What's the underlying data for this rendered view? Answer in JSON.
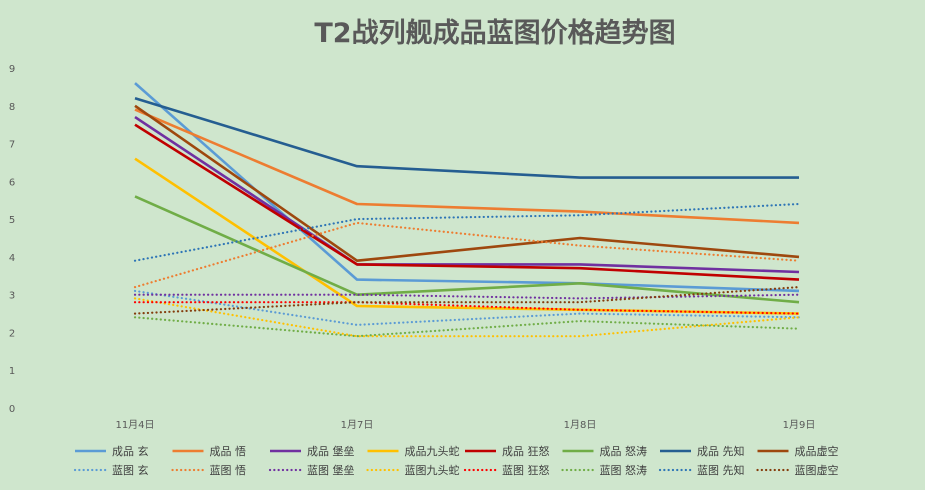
{
  "chart_data": {
    "type": "line",
    "title": "T2战列舰成品蓝图价格趋势图",
    "categories": [
      "11月4日",
      "1月7日",
      "1月8日",
      "1月9日"
    ],
    "ylim": [
      0,
      9
    ],
    "yticks": [
      0,
      1,
      2,
      3,
      4,
      5,
      6,
      7,
      8,
      9
    ],
    "grid": false,
    "legend_position": "bottom",
    "series": [
      {
        "name": "成品 玄",
        "color": "#5b9bd5",
        "dash": "solid",
        "values": [
          8.6,
          3.4,
          3.3,
          3.1
        ]
      },
      {
        "name": "成品 悟",
        "color": "#ed7d31",
        "dash": "solid",
        "values": [
          7.9,
          5.4,
          5.2,
          4.9
        ]
      },
      {
        "name": "成品 堡垒",
        "color": "#7030a0",
        "dash": "solid",
        "values": [
          7.7,
          3.8,
          3.8,
          3.6
        ]
      },
      {
        "name": "成品九头蛇",
        "color": "#ffc000",
        "dash": "solid",
        "values": [
          6.6,
          2.7,
          2.6,
          2.5
        ]
      },
      {
        "name": "成品 狂怒",
        "color": "#c00000",
        "dash": "solid",
        "values": [
          7.5,
          3.8,
          3.7,
          3.4
        ]
      },
      {
        "name": "成品 怒涛",
        "color": "#70ad47",
        "dash": "solid",
        "values": [
          5.6,
          3.0,
          3.3,
          2.8
        ]
      },
      {
        "name": "成品 先知",
        "color": "#255e91",
        "dash": "solid",
        "values": [
          8.2,
          6.4,
          6.1,
          6.1
        ]
      },
      {
        "name": "成品虚空",
        "color": "#9e480e",
        "dash": "solid",
        "values": [
          8.0,
          3.9,
          4.5,
          4.0
        ]
      },
      {
        "name": "蓝图 玄",
        "color": "#5b9bd5",
        "dash": "dot",
        "values": [
          3.1,
          2.2,
          2.5,
          2.4
        ]
      },
      {
        "name": "蓝图 悟",
        "color": "#ed7d31",
        "dash": "dot",
        "values": [
          3.2,
          4.9,
          4.3,
          3.9
        ]
      },
      {
        "name": "蓝图 堡垒",
        "color": "#7030a0",
        "dash": "dot",
        "values": [
          3.0,
          3.0,
          2.9,
          3.0
        ]
      },
      {
        "name": "蓝图九头蛇",
        "color": "#ffc000",
        "dash": "dot",
        "values": [
          2.9,
          1.9,
          1.9,
          2.4
        ]
      },
      {
        "name": "蓝图 狂怒",
        "color": "#ff0000",
        "dash": "dot",
        "values": [
          2.8,
          2.8,
          2.6,
          2.5
        ]
      },
      {
        "name": "蓝图 怒涛",
        "color": "#70ad47",
        "dash": "dot",
        "values": [
          2.4,
          1.9,
          2.3,
          2.1
        ]
      },
      {
        "name": "蓝图 先知",
        "color": "#2e75b6",
        "dash": "dot",
        "values": [
          3.9,
          5.0,
          5.1,
          5.4
        ]
      },
      {
        "name": "蓝图虚空",
        "color": "#843c0c",
        "dash": "dot",
        "values": [
          2.5,
          2.8,
          2.8,
          3.2
        ]
      }
    ]
  }
}
